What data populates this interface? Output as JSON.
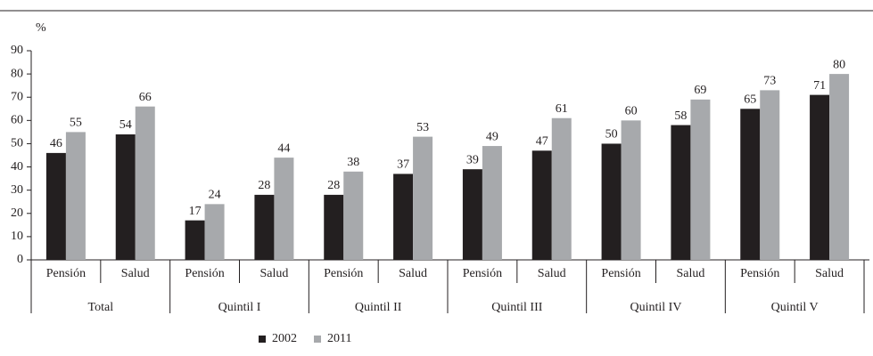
{
  "chart_data": {
    "type": "bar",
    "y_label": "%",
    "categories": [
      "Pensión",
      "Salud",
      "Pensión",
      "Salud",
      "Pensión",
      "Salud",
      "Pensión",
      "Salud",
      "Pensión",
      "Salud",
      "Pensión",
      "Salud"
    ],
    "groups": [
      "Total",
      "Quintil I",
      "Quintil II",
      "Quintil III",
      "Quintil IV",
      "Quintil V"
    ],
    "series": [
      {
        "name": "2002",
        "color": "#231f20",
        "values": [
          46,
          54,
          17,
          28,
          28,
          37,
          39,
          47,
          50,
          58,
          65,
          71
        ]
      },
      {
        "name": "2011",
        "color": "#a7a9ac",
        "values": [
          55,
          66,
          24,
          44,
          38,
          53,
          49,
          61,
          60,
          69,
          73,
          80
        ]
      }
    ],
    "ylim": [
      0,
      90
    ],
    "yticks": [
      0,
      10,
      20,
      30,
      40,
      50,
      60,
      70,
      80,
      90
    ],
    "legend": "bottom"
  }
}
